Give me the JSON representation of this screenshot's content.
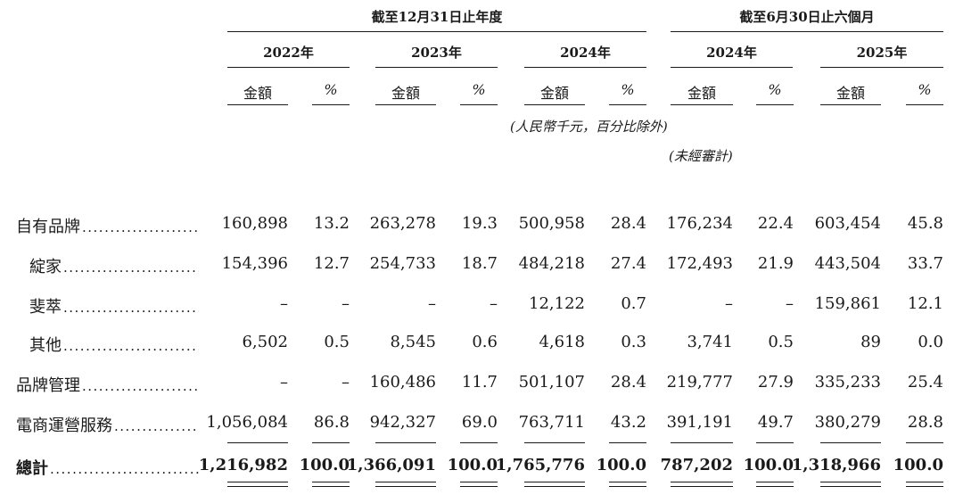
{
  "header": {
    "group_fy": "截至12月31日止年度",
    "group_h1": "截至6月30日止六個月",
    "years": [
      "2022年",
      "2023年",
      "2024年",
      "2024年",
      "2025年"
    ],
    "amount_label": "金額",
    "pct_label": "%",
    "unit_note": "(人民幣千元，百分比除外)",
    "unaudited_note": "(未經審計)"
  },
  "rows": [
    {
      "label": "自有品牌",
      "indent": false,
      "values": [
        "160,898",
        "13.2",
        "263,278",
        "19.3",
        "500,958",
        "28.4",
        "176,234",
        "22.4",
        "603,454",
        "45.8"
      ]
    },
    {
      "label": "綻家",
      "indent": true,
      "values": [
        "154,396",
        "12.7",
        "254,733",
        "18.7",
        "484,218",
        "27.4",
        "172,493",
        "21.9",
        "443,504",
        "33.7"
      ]
    },
    {
      "label": "斐萃",
      "indent": true,
      "values": [
        "–",
        "–",
        "–",
        "–",
        "12,122",
        "0.7",
        "–",
        "–",
        "159,861",
        "12.1"
      ]
    },
    {
      "label": "其他",
      "indent": true,
      "values": [
        "6,502",
        "0.5",
        "8,545",
        "0.6",
        "4,618",
        "0.3",
        "3,741",
        "0.5",
        "89",
        "0.0"
      ]
    },
    {
      "label": "品牌管理",
      "indent": false,
      "values": [
        "–",
        "–",
        "160,486",
        "11.7",
        "501,107",
        "28.4",
        "219,777",
        "27.9",
        "335,233",
        "25.4"
      ]
    },
    {
      "label": "電商運營服務",
      "indent": false,
      "values": [
        "1,056,084",
        "86.8",
        "942,327",
        "69.0",
        "763,711",
        "43.2",
        "391,191",
        "49.7",
        "380,279",
        "28.8"
      ]
    }
  ],
  "total": {
    "label": "總計",
    "values": [
      "1,216,982",
      "100.0",
      "1,366,091",
      "100.0",
      "1,765,776",
      "100.0",
      "787,202",
      "100.0",
      "1,318,966",
      "100.0"
    ]
  }
}
